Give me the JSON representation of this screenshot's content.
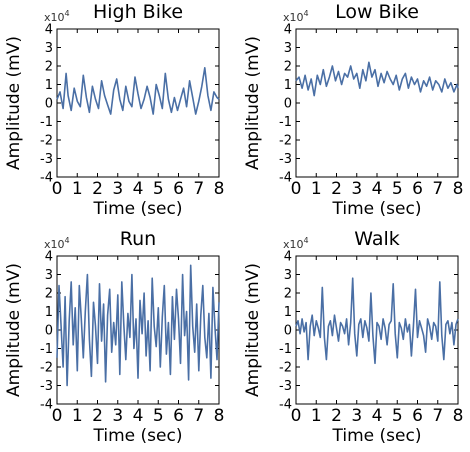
{
  "chart_data": [
    {
      "type": "line",
      "title": "High Bike",
      "xlabel": "Time (sec)",
      "ylabel": "Amplitude (mV)",
      "y_multiplier_base": "x10",
      "y_multiplier_exp": "4",
      "xlim": [
        0,
        8
      ],
      "ylim": [
        -4,
        4
      ],
      "xticks": [
        "0",
        "1",
        "2",
        "3",
        "4",
        "5",
        "6",
        "7",
        "8"
      ],
      "yticks": [
        "4",
        "3",
        "2",
        "1",
        "0",
        "-1",
        "-2",
        "-3",
        "-4"
      ],
      "series": [
        {
          "color": "#4a6fa5",
          "x": [
            0,
            0.15,
            0.3,
            0.45,
            0.55,
            0.7,
            0.85,
            1.0,
            1.15,
            1.3,
            1.45,
            1.6,
            1.75,
            1.9,
            2.05,
            2.2,
            2.35,
            2.5,
            2.65,
            2.8,
            2.95,
            3.1,
            3.25,
            3.4,
            3.55,
            3.7,
            3.85,
            4.0,
            4.15,
            4.3,
            4.45,
            4.6,
            4.75,
            4.9,
            5.05,
            5.2,
            5.35,
            5.5,
            5.65,
            5.8,
            5.95,
            6.1,
            6.25,
            6.4,
            6.55,
            6.7,
            6.85,
            7.0,
            7.15,
            7.3,
            7.45,
            7.6,
            7.75,
            7.9,
            8.0
          ],
          "y": [
            0.2,
            0.6,
            -0.3,
            1.6,
            0.4,
            -0.4,
            0.8,
            0.1,
            -0.2,
            1.5,
            0.3,
            -0.5,
            0.9,
            0.2,
            -0.3,
            1.2,
            0.4,
            -0.1,
            -0.6,
            0.7,
            1.3,
            0.2,
            -0.4,
            0.9,
            0.1,
            -0.2,
            1.4,
            0.5,
            -0.3,
            0.2,
            0.9,
            0.3,
            -0.6,
            1.0,
            0.4,
            -0.3,
            1.6,
            0.2,
            -0.5,
            0.3,
            -0.4,
            0.2,
            0.8,
            -0.2,
            1.2,
            0.3,
            -0.6,
            0.1,
            0.9,
            1.9,
            0.4,
            -0.4,
            0.6,
            0.3,
            0.2
          ]
        }
      ]
    },
    {
      "type": "line",
      "title": "Low Bike",
      "xlabel": "Time (sec)",
      "ylabel": "Amplitude (mV)",
      "y_multiplier_base": "x10",
      "y_multiplier_exp": "4",
      "xlim": [
        0,
        8
      ],
      "ylim": [
        -4,
        4
      ],
      "xticks": [
        "0",
        "1",
        "2",
        "3",
        "4",
        "5",
        "6",
        "7",
        "8"
      ],
      "yticks": [
        "4",
        "3",
        "2",
        "1",
        "0",
        "-1",
        "-2",
        "-3",
        "-4"
      ],
      "series": [
        {
          "color": "#4a6fa5",
          "x": [
            0,
            0.15,
            0.3,
            0.45,
            0.6,
            0.75,
            0.9,
            1.05,
            1.2,
            1.35,
            1.5,
            1.65,
            1.8,
            1.95,
            2.1,
            2.25,
            2.4,
            2.55,
            2.7,
            2.85,
            3.0,
            3.15,
            3.3,
            3.45,
            3.6,
            3.75,
            3.9,
            4.05,
            4.2,
            4.35,
            4.5,
            4.65,
            4.8,
            4.95,
            5.1,
            5.25,
            5.4,
            5.55,
            5.7,
            5.85,
            6.0,
            6.15,
            6.3,
            6.45,
            6.6,
            6.75,
            6.9,
            7.05,
            7.2,
            7.35,
            7.5,
            7.65,
            7.8,
            7.95,
            8.0
          ],
          "y": [
            1.2,
            1.4,
            0.8,
            1.5,
            0.7,
            1.3,
            0.4,
            1.5,
            1.0,
            1.8,
            0.9,
            1.4,
            2.0,
            1.2,
            1.7,
            1.0,
            1.6,
            1.4,
            2.0,
            1.3,
            1.6,
            0.8,
            1.8,
            1.2,
            2.2,
            1.4,
            1.8,
            0.9,
            1.6,
            1.1,
            1.7,
            1.3,
            1.0,
            1.5,
            0.7,
            1.3,
            1.6,
            0.8,
            1.4,
            1.0,
            1.3,
            0.6,
            1.2,
            0.9,
            1.4,
            0.7,
            1.2,
            1.0,
            0.6,
            1.3,
            0.8,
            1.1,
            0.6,
            1.0,
            0.8
          ]
        }
      ]
    },
    {
      "type": "line",
      "title": "Run",
      "xlabel": "Time (sec)",
      "ylabel": "Amplitude (mV)",
      "y_multiplier_base": "x10",
      "y_multiplier_exp": "4",
      "xlim": [
        0,
        8
      ],
      "ylim": [
        -4,
        4
      ],
      "xticks": [
        "0",
        "1",
        "2",
        "3",
        "4",
        "5",
        "6",
        "7",
        "8"
      ],
      "yticks": [
        "4",
        "3",
        "2",
        "1",
        "0",
        "-1",
        "-2",
        "-3",
        "-4"
      ],
      "series": [
        {
          "color": "#4a6fa5",
          "x": [
            0,
            0.1,
            0.2,
            0.3,
            0.4,
            0.5,
            0.6,
            0.7,
            0.8,
            0.9,
            1.0,
            1.1,
            1.2,
            1.3,
            1.4,
            1.5,
            1.6,
            1.7,
            1.8,
            1.9,
            2.0,
            2.1,
            2.2,
            2.3,
            2.4,
            2.5,
            2.6,
            2.7,
            2.8,
            2.9,
            3.0,
            3.1,
            3.2,
            3.3,
            3.4,
            3.5,
            3.6,
            3.7,
            3.8,
            3.9,
            4.0,
            4.1,
            4.2,
            4.3,
            4.4,
            4.5,
            4.6,
            4.7,
            4.8,
            4.9,
            5.0,
            5.1,
            5.2,
            5.3,
            5.4,
            5.5,
            5.6,
            5.7,
            5.8,
            5.9,
            6.0,
            6.1,
            6.2,
            6.3,
            6.4,
            6.5,
            6.6,
            6.7,
            6.8,
            6.9,
            7.0,
            7.1,
            7.2,
            7.3,
            7.4,
            7.5,
            7.6,
            7.7,
            7.8,
            7.9,
            8.0
          ],
          "y": [
            -1.5,
            2.4,
            0.3,
            -2.0,
            1.8,
            -3.0,
            0.5,
            2.6,
            -0.8,
            1.2,
            -2.2,
            2.4,
            0.6,
            -1.5,
            1.0,
            3.0,
            -0.5,
            -2.5,
            1.5,
            0.2,
            -1.8,
            2.5,
            -0.6,
            1.4,
            -2.8,
            0.8,
            2.2,
            -1.2,
            0.4,
            -0.8,
            1.9,
            -2.4,
            2.6,
            0.3,
            -1.6,
            0.9,
            -0.4,
            3.0,
            -1.0,
            0.6,
            -2.6,
            1.6,
            -0.2,
            2.0,
            -1.4,
            0.5,
            -2.2,
            2.8,
            0.2,
            -0.9,
            1.2,
            -2.0,
            0.7,
            2.4,
            -1.3,
            0.4,
            -2.4,
            1.8,
            -0.5,
            2.2,
            0.6,
            -1.8,
            3.0,
            -0.3,
            1.0,
            -2.7,
            3.5,
            0.2,
            -1.2,
            1.4,
            -2.2,
            0.8,
            2.4,
            -0.4,
            -1.5,
            0.9,
            -2.6,
            2.3,
            0.2,
            -1.6,
            1.5
          ]
        }
      ]
    },
    {
      "type": "line",
      "title": "Walk",
      "xlabel": "Time (sec)",
      "ylabel": "Amplitude (mV)",
      "y_multiplier_base": "x10",
      "y_multiplier_exp": "4",
      "xlim": [
        0,
        8
      ],
      "ylim": [
        -4,
        4
      ],
      "xticks": [
        "0",
        "1",
        "2",
        "3",
        "4",
        "5",
        "6",
        "7",
        "8"
      ],
      "yticks": [
        "4",
        "3",
        "2",
        "1",
        "0",
        "-1",
        "-2",
        "-3",
        "-4"
      ],
      "series": [
        {
          "color": "#4a6fa5",
          "x": [
            0,
            0.1,
            0.2,
            0.3,
            0.4,
            0.5,
            0.6,
            0.7,
            0.8,
            0.9,
            1.0,
            1.1,
            1.2,
            1.3,
            1.4,
            1.5,
            1.6,
            1.7,
            1.8,
            1.9,
            2.0,
            2.1,
            2.2,
            2.3,
            2.4,
            2.5,
            2.6,
            2.7,
            2.8,
            2.9,
            3.0,
            3.1,
            3.2,
            3.3,
            3.4,
            3.5,
            3.6,
            3.7,
            3.8,
            3.9,
            4.0,
            4.1,
            4.2,
            4.3,
            4.4,
            4.5,
            4.6,
            4.7,
            4.8,
            4.9,
            5.0,
            5.1,
            5.2,
            5.3,
            5.4,
            5.5,
            5.6,
            5.7,
            5.8,
            5.9,
            6.0,
            6.1,
            6.2,
            6.3,
            6.4,
            6.5,
            6.6,
            6.7,
            6.8,
            6.9,
            7.0,
            7.1,
            7.2,
            7.3,
            7.4,
            7.5,
            7.6,
            7.7,
            7.8,
            7.9,
            8.0
          ],
          "y": [
            0.2,
            0.5,
            -0.2,
            0.6,
            -0.1,
            0.4,
            -1.6,
            0.2,
            0.8,
            -0.3,
            0.5,
            0.1,
            -0.4,
            2.3,
            -0.4,
            -1.6,
            0.2,
            0.5,
            -0.3,
            0.8,
            0.1,
            -0.6,
            0.4,
            0.2,
            -0.2,
            0.6,
            -0.8,
            0.4,
            2.8,
            -0.2,
            -1.4,
            0.3,
            0.6,
            -0.4,
            0.5,
            0.1,
            -0.6,
            2.0,
            -0.3,
            -1.8,
            0.4,
            0.2,
            -0.5,
            0.6,
            0.1,
            -0.8,
            0.3,
            0.5,
            2.5,
            -0.2,
            -1.5,
            0.4,
            0.1,
            -0.5,
            0.6,
            -0.1,
            0.3,
            -1.4,
            0.2,
            2.2,
            -0.4,
            0.5,
            0.1,
            -0.3,
            -1.2,
            0.6,
            0.2,
            -0.5,
            0.4,
            0.2,
            -0.6,
            2.6,
            -0.3,
            -1.6,
            0.3,
            0.5,
            -0.2,
            0.4,
            -0.8,
            0.3,
            0.6
          ]
        }
      ]
    }
  ]
}
